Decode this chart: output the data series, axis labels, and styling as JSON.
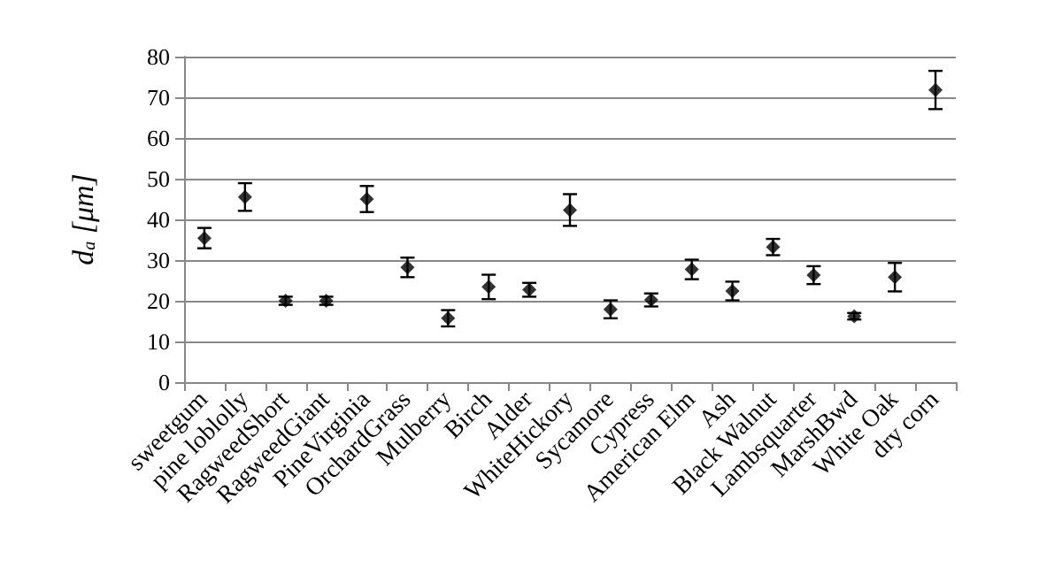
{
  "chart_data": {
    "type": "scatter",
    "ylabel": "d$_{a}$ [μm]",
    "categories": [
      "sweetgum",
      "pine loblolly",
      "RagweedShort",
      "RagweedGiant",
      "PineVirginia",
      "OrchardGrass",
      "Mulberry",
      "Birch",
      "Alder",
      "WhiteHickory",
      "Sycamore",
      "Cypress",
      "American Elm",
      "Ash",
      "Black Walnut",
      "Lambsquarter",
      "MarshBwd",
      "White Oak",
      "dry corn"
    ],
    "values": [
      35.4,
      45.5,
      20,
      20,
      45,
      28.2,
      15.7,
      23.4,
      22.7,
      42.3,
      17.9,
      20.2,
      27.7,
      22.4,
      33.2,
      26.3,
      16.2,
      25.8,
      71.8
    ],
    "errors": [
      2.5,
      3.4,
      1,
      1,
      3.2,
      2.4,
      2,
      3,
      1.7,
      3.9,
      2.2,
      1.6,
      2.4,
      2.3,
      2,
      2.2,
      0.8,
      3.5,
      4.7
    ],
    "color": "#000000",
    "marker": "diamond",
    "grid": "y",
    "ylim": [
      0,
      80
    ],
    "yticks": [
      0,
      10,
      20,
      30,
      40,
      50,
      60,
      70,
      80
    ]
  }
}
